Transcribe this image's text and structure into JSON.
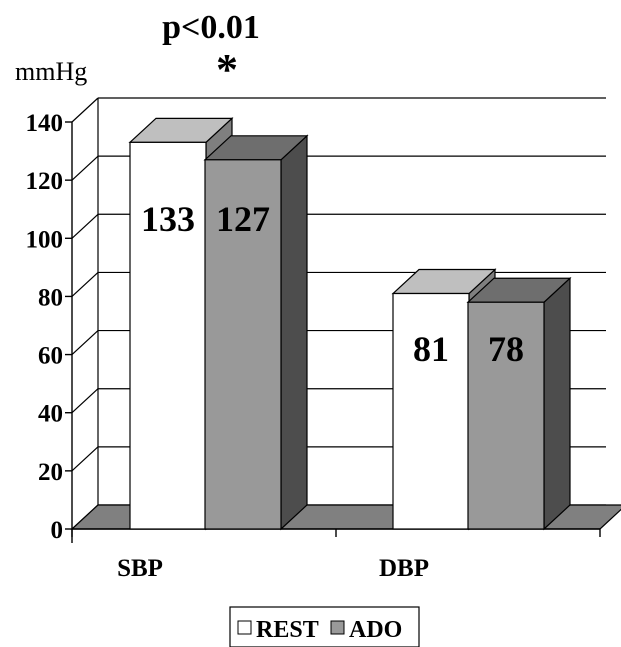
{
  "chart_data": {
    "type": "bar",
    "annotation": "p<0.01",
    "annotation_marker": "*",
    "ylabel": "mmHg",
    "ylim": [
      0,
      140
    ],
    "y_ticks": [
      0,
      20,
      40,
      60,
      80,
      100,
      120,
      140
    ],
    "categories": [
      "SBP",
      "DBP"
    ],
    "series": [
      {
        "name": "REST",
        "values": [
          133,
          81
        ],
        "labels": [
          "133",
          "81"
        ],
        "color": "#ffffff",
        "side_color": "#7f7f7f",
        "top_color": "#bfbfbf"
      },
      {
        "name": "ADO",
        "values": [
          127,
          78
        ],
        "labels": [
          "127",
          "78"
        ],
        "color": "#999999",
        "side_color": "#4d4d4d",
        "top_color": "#6e6e6e"
      }
    ],
    "grid": true,
    "style": "3d",
    "legend_position": "bottom"
  }
}
